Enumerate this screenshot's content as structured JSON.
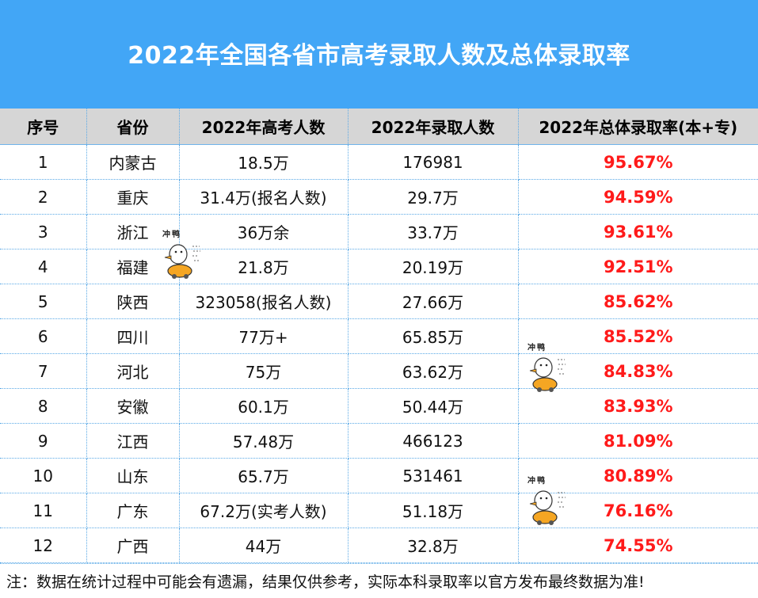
{
  "title": "2022年全国各省市高考录取人数及总体录取率",
  "headers": [
    "序号",
    "省份",
    "2022年高考人数",
    "2022年录取人数",
    "2022年总体录取率(本+专)"
  ],
  "rows": [
    {
      "no": "1",
      "province": "内蒙古",
      "examinees": "18.5万",
      "admitted": "176981",
      "rate": "95.67%"
    },
    {
      "no": "2",
      "province": "重庆",
      "examinees": "31.4万(报名人数)",
      "admitted": "29.7万",
      "rate": "94.59%"
    },
    {
      "no": "3",
      "province": "浙江",
      "examinees": "36万余",
      "admitted": "33.7万",
      "rate": "93.61%"
    },
    {
      "no": "4",
      "province": "福建",
      "examinees": "21.8万",
      "admitted": "20.19万",
      "rate": "92.51%"
    },
    {
      "no": "5",
      "province": "陕西",
      "examinees": "323058(报名人数)",
      "admitted": "27.66万",
      "rate": "85.62%"
    },
    {
      "no": "6",
      "province": "四川",
      "examinees": "77万+",
      "admitted": "65.85万",
      "rate": "85.52%"
    },
    {
      "no": "7",
      "province": "河北",
      "examinees": "75万",
      "admitted": "63.62万",
      "rate": "84.83%"
    },
    {
      "no": "8",
      "province": "安徽",
      "examinees": "60.1万",
      "admitted": "50.44万",
      "rate": "83.93%"
    },
    {
      "no": "9",
      "province": "江西",
      "examinees": "57.48万",
      "admitted": "466123",
      "rate": "81.09%"
    },
    {
      "no": "10",
      "province": "山东",
      "examinees": "65.7万",
      "admitted": "531461",
      "rate": "80.89%"
    },
    {
      "no": "11",
      "province": "广东",
      "examinees": "67.2万(实考人数)",
      "admitted": "51.18万",
      "rate": "76.16%"
    },
    {
      "no": "12",
      "province": "广西",
      "examinees": "44万",
      "admitted": "32.8万",
      "rate": "74.55%"
    }
  ],
  "note": "注：数据在统计过程中可能会有遗漏，结果仅供参考，实际本科录取率以官方发布最终数据为准!",
  "sticker_text": "冲鸭",
  "colors": {
    "banner": "#42a6f6",
    "header_bg": "#d6d6d6",
    "rate": "#ff1a1a",
    "grid": "#5aa9e6"
  }
}
